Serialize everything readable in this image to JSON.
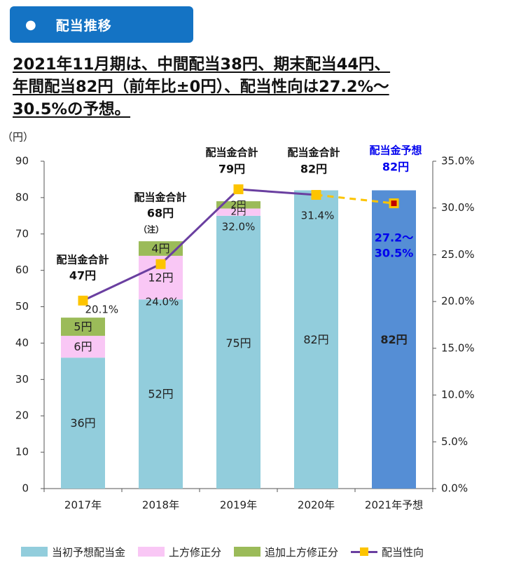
{
  "header": {
    "bullet": "●",
    "title": "配当推移"
  },
  "headline": {
    "line1": "2021年11月期は、中間配当38円、期末配当44円、",
    "line2": "年間配当82円（前年比±0円）、配当性向は27.2%〜",
    "line3": "30.5%の予想。"
  },
  "colors": {
    "header": "#1473c4",
    "initial": "#92cddc",
    "upward": "#f9c7f5",
    "additional": "#9bbb59",
    "forecast": "#558ed5",
    "payout_line": "#6a3fa0",
    "payout_marker": "#fdc400",
    "forecast_label": "#0000ee"
  },
  "chart_data": {
    "type": "bar",
    "stacked": true,
    "y_unit_label": "（円）",
    "categories": [
      "2017年",
      "2018年",
      "2019年",
      "2020年",
      "2021年予想"
    ],
    "ylim": [
      0,
      90
    ],
    "yticks": [
      0,
      10,
      20,
      30,
      40,
      50,
      60,
      70,
      80,
      90
    ],
    "y2lim": [
      0,
      35
    ],
    "y2ticks": [
      "0.0%",
      "5.0%",
      "10.0%",
      "15.0%",
      "20.0%",
      "25.0%",
      "30.0%",
      "35.0%"
    ],
    "series": [
      {
        "name": "当初予想配当金",
        "values": [
          36,
          52,
          75,
          82,
          0
        ],
        "labels": [
          "36円",
          "52円",
          "75円",
          "82円",
          ""
        ]
      },
      {
        "name": "上方修正分",
        "values": [
          6,
          12,
          2,
          0,
          0
        ],
        "labels": [
          "6円",
          "12円",
          "2円",
          "",
          ""
        ]
      },
      {
        "name": "追加上方修正分",
        "values": [
          5,
          4,
          2,
          0,
          0
        ],
        "labels": [
          "5円",
          "4円",
          "2円",
          "",
          ""
        ]
      },
      {
        "name": "配当金予想",
        "values": [
          0,
          0,
          0,
          0,
          82
        ],
        "labels": [
          "",
          "",
          "",
          "",
          "82円"
        ]
      }
    ],
    "payout_ratio": {
      "name": "配当性向",
      "values": [
        20.1,
        24.0,
        32.0,
        31.4,
        30.5
      ],
      "labels": [
        "20.1%",
        "24.0%",
        "32.0%",
        "31.4%",
        ""
      ],
      "forecast_label": [
        "27.2〜",
        "30.5%"
      ]
    },
    "totals": [
      {
        "title": "配当金合計",
        "value": "47円",
        "note": ""
      },
      {
        "title": "配当金合計",
        "value": "68円",
        "note": "（注）"
      },
      {
        "title": "配当金合計",
        "value": "79円",
        "note": ""
      },
      {
        "title": "配当金合計",
        "value": "82円",
        "note": ""
      },
      {
        "title": "配当金予想",
        "value": "82円",
        "note": ""
      }
    ],
    "legend": [
      "当初予想配当金",
      "上方修正分",
      "追加上方修正分",
      "配当性向"
    ]
  }
}
